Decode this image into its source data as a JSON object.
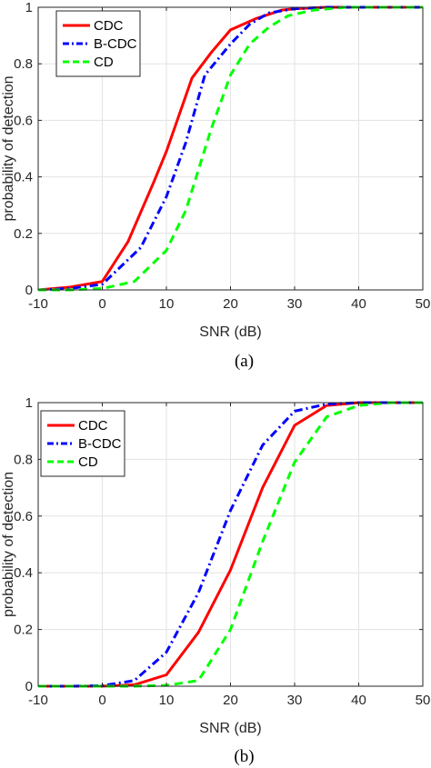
{
  "chart_data": [
    {
      "type": "line",
      "caption": "(a)",
      "xlabel": "SNR (dB)",
      "ylabel": "probability of detection",
      "xlim": [
        -10,
        50
      ],
      "ylim": [
        0,
        1
      ],
      "xticks": [
        -10,
        0,
        10,
        20,
        30,
        40,
        50
      ],
      "yticks": [
        0,
        0.2,
        0.4,
        0.6,
        0.8,
        1
      ],
      "grid": true,
      "legend_position": "top-left",
      "series": [
        {
          "name": "CDC",
          "color": "#ff0000",
          "dash": "solid",
          "x": [
            -10,
            -5,
            0,
            4,
            8,
            10,
            14,
            17,
            20,
            24,
            28,
            30,
            35,
            40,
            45,
            50
          ],
          "y": [
            0,
            0.01,
            0.03,
            0.17,
            0.38,
            0.49,
            0.75,
            0.84,
            0.92,
            0.96,
            0.99,
            0.995,
            1,
            1,
            1,
            1
          ]
        },
        {
          "name": "B-CDC",
          "color": "#0000ff",
          "dash": "dashdot",
          "x": [
            -10,
            -5,
            0,
            6,
            10,
            13,
            16,
            20,
            23,
            26,
            30,
            35,
            40,
            45,
            50
          ],
          "y": [
            0,
            0.005,
            0.02,
            0.15,
            0.33,
            0.52,
            0.76,
            0.87,
            0.94,
            0.98,
            0.995,
            1,
            1,
            1,
            1
          ]
        },
        {
          "name": "CD",
          "color": "#00ff00",
          "dash": "dashed",
          "x": [
            -10,
            -5,
            0,
            5,
            10,
            13,
            17,
            20,
            23,
            26,
            29,
            33,
            38,
            42,
            50
          ],
          "y": [
            0,
            0,
            0.005,
            0.03,
            0.14,
            0.28,
            0.57,
            0.76,
            0.87,
            0.93,
            0.97,
            0.99,
            1,
            1,
            1
          ]
        }
      ]
    },
    {
      "type": "line",
      "caption": "(b)",
      "xlabel": "SNR (dB)",
      "ylabel": "probability of detection",
      "xlim": [
        -10,
        50
      ],
      "ylim": [
        0,
        1
      ],
      "xticks": [
        -10,
        0,
        10,
        20,
        30,
        40,
        50
      ],
      "yticks": [
        0,
        0.2,
        0.4,
        0.6,
        0.8,
        1
      ],
      "grid": true,
      "legend_position": "top-left",
      "series": [
        {
          "name": "CDC",
          "color": "#ff0000",
          "dash": "solid",
          "x": [
            -10,
            -5,
            0,
            5,
            10,
            15,
            20,
            25,
            30,
            35,
            40,
            45,
            50
          ],
          "y": [
            0,
            0,
            0,
            0.005,
            0.04,
            0.19,
            0.41,
            0.7,
            0.92,
            0.99,
            1,
            1,
            1
          ]
        },
        {
          "name": "B-CDC",
          "color": "#0000ff",
          "dash": "dashdot",
          "x": [
            -10,
            -5,
            0,
            5,
            10,
            15,
            20,
            25,
            30,
            35,
            40,
            45,
            50
          ],
          "y": [
            0,
            0,
            0.002,
            0.02,
            0.12,
            0.33,
            0.62,
            0.85,
            0.97,
            0.995,
            1,
            1,
            1
          ]
        },
        {
          "name": "CD",
          "color": "#00ff00",
          "dash": "dashed",
          "x": [
            -10,
            -5,
            0,
            5,
            10,
            15,
            20,
            25,
            30,
            35,
            40,
            45,
            50
          ],
          "y": [
            0,
            0,
            0,
            0,
            0.003,
            0.02,
            0.2,
            0.51,
            0.79,
            0.95,
            0.99,
            1,
            1
          ]
        }
      ]
    }
  ]
}
